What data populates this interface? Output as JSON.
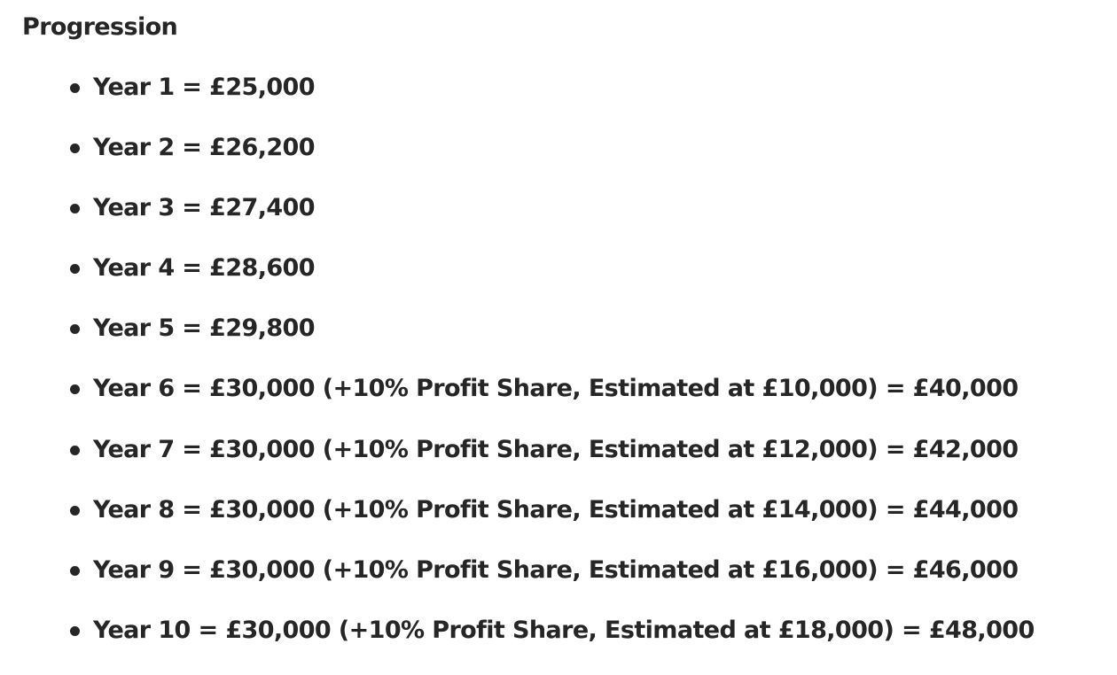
{
  "section": {
    "heading": "Progression",
    "items": [
      "Year 1 = £25,000",
      "Year 2 = £26,200",
      "Year 3 = £27,400",
      "Year 4 = £28,600",
      "Year 5 = £29,800",
      "Year 6 = £30,000 (+10% Profit Share, Estimated at £10,000) = £40,000",
      "Year 7 = £30,000 (+10% Profit Share, Estimated at £12,000) = £42,000",
      "Year 8 = £30,000 (+10% Profit Share, Estimated at £14,000) = £44,000",
      "Year 9 = £30,000 (+10% Profit Share, Estimated at £16,000) = £46,000",
      "Year 10 = £30,000 (+10% Profit Share, Estimated at £18,000) = £48,000"
    ]
  }
}
